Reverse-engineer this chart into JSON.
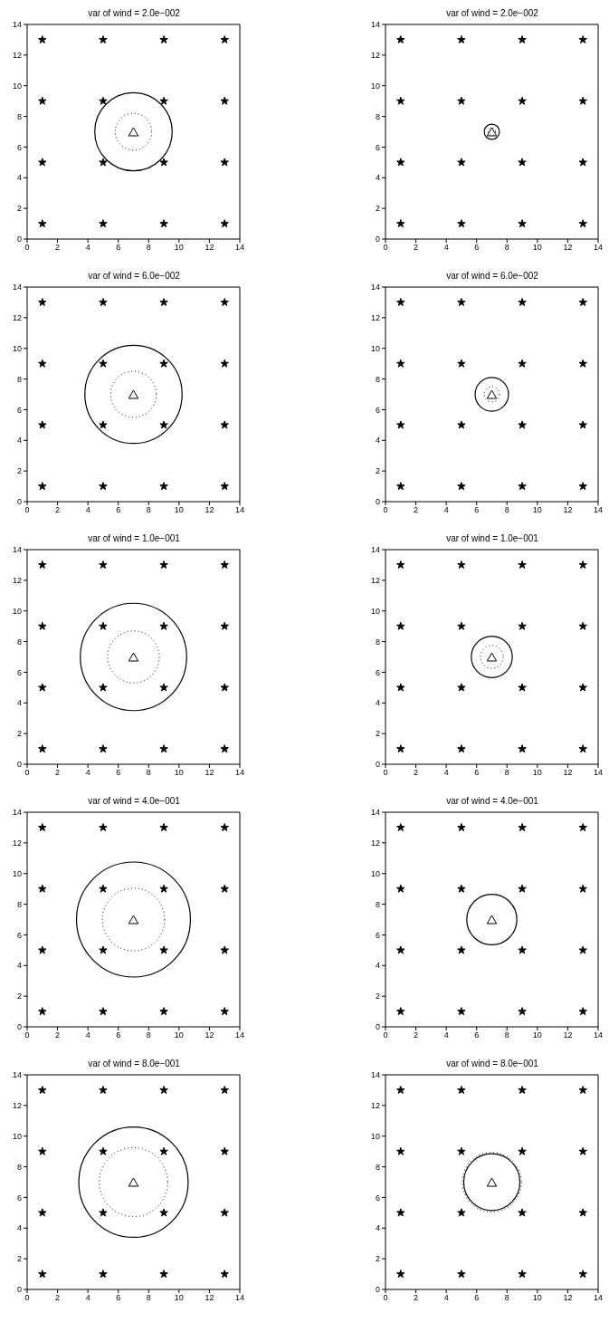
{
  "chart_data": [
    {
      "type": "scatter",
      "title": "var of wind = 2.0e−002",
      "xlim": [
        0,
        14
      ],
      "ylim": [
        0,
        14
      ],
      "xticks": [
        0,
        2,
        4,
        6,
        8,
        10,
        12,
        14
      ],
      "yticks": [
        0,
        2,
        4,
        6,
        8,
        10,
        12,
        14
      ],
      "series": [
        {
          "type": "scatter",
          "marker": "star",
          "color": "#000000",
          "x": [
            1,
            5,
            9,
            13,
            1,
            5,
            9,
            13,
            1,
            5,
            9,
            13,
            1,
            5,
            9,
            13
          ],
          "values": [
            1,
            1,
            1,
            1,
            5,
            5,
            5,
            5,
            9,
            9,
            9,
            9,
            13,
            13,
            13,
            13
          ]
        },
        {
          "type": "scatter",
          "marker": "triangle",
          "color": "#000000",
          "x": [
            7
          ],
          "values": [
            7
          ]
        }
      ]
    },
    {
      "type": "scatter",
      "title": "var of wind = 2.0e−002",
      "xlim": [
        0,
        14
      ],
      "ylim": [
        0,
        14
      ],
      "xticks": [
        0,
        2,
        4,
        6,
        8,
        10,
        12,
        14
      ],
      "yticks": [
        0,
        2,
        4,
        6,
        8,
        10,
        12,
        14
      ],
      "series": [
        {
          "type": "scatter",
          "marker": "star",
          "color": "#000000",
          "x": [
            1,
            5,
            9,
            13,
            1,
            5,
            9,
            13,
            1,
            5,
            9,
            13,
            1,
            5,
            9,
            13
          ],
          "values": [
            1,
            1,
            1,
            1,
            5,
            5,
            5,
            5,
            9,
            9,
            9,
            9,
            13,
            13,
            13,
            13
          ]
        },
        {
          "type": "scatter",
          "marker": "triangle",
          "color": "#000000",
          "x": [
            7
          ],
          "values": [
            7
          ]
        }
      ]
    },
    {
      "type": "scatter",
      "title": "var of wind = 6.0e−002",
      "xlim": [
        0,
        14
      ],
      "ylim": [
        0,
        14
      ],
      "xticks": [
        0,
        2,
        4,
        6,
        8,
        10,
        12,
        14
      ],
      "yticks": [
        0,
        2,
        4,
        6,
        8,
        10,
        12,
        14
      ],
      "series": [
        {
          "type": "scatter",
          "marker": "star",
          "color": "#000000",
          "x": [
            1,
            5,
            9,
            13,
            1,
            5,
            9,
            13,
            1,
            5,
            9,
            13,
            1,
            5,
            9,
            13
          ],
          "values": [
            1,
            1,
            1,
            1,
            5,
            5,
            5,
            5,
            9,
            9,
            9,
            9,
            13,
            13,
            13,
            13
          ]
        },
        {
          "type": "scatter",
          "marker": "triangle",
          "color": "#000000",
          "x": [
            7
          ],
          "values": [
            7
          ]
        }
      ]
    },
    {
      "type": "scatter",
      "title": "var of wind = 6.0e−002",
      "xlim": [
        0,
        14
      ],
      "ylim": [
        0,
        14
      ],
      "xticks": [
        0,
        2,
        4,
        6,
        8,
        10,
        12,
        14
      ],
      "yticks": [
        0,
        2,
        4,
        6,
        8,
        10,
        12,
        14
      ],
      "series": [
        {
          "type": "scatter",
          "marker": "star",
          "color": "#000000",
          "x": [
            1,
            5,
            9,
            13,
            1,
            5,
            9,
            13,
            1,
            5,
            9,
            13,
            1,
            5,
            9,
            13
          ],
          "values": [
            1,
            1,
            1,
            1,
            5,
            5,
            5,
            5,
            9,
            9,
            9,
            9,
            13,
            13,
            13,
            13
          ]
        },
        {
          "type": "scatter",
          "marker": "triangle",
          "color": "#000000",
          "x": [
            7
          ],
          "values": [
            7
          ]
        }
      ]
    },
    {
      "type": "scatter",
      "title": "var of wind = 1.0e−001",
      "xlim": [
        0,
        14
      ],
      "ylim": [
        0,
        14
      ],
      "xticks": [
        0,
        2,
        4,
        6,
        8,
        10,
        12,
        14
      ],
      "yticks": [
        0,
        2,
        4,
        6,
        8,
        10,
        12,
        14
      ],
      "series": [
        {
          "type": "scatter",
          "marker": "star",
          "color": "#000000",
          "x": [
            1,
            5,
            9,
            13,
            1,
            5,
            9,
            13,
            1,
            5,
            9,
            13,
            1,
            5,
            9,
            13
          ],
          "values": [
            1,
            1,
            1,
            1,
            5,
            5,
            5,
            5,
            9,
            9,
            9,
            9,
            13,
            13,
            13,
            13
          ]
        },
        {
          "type": "scatter",
          "marker": "triangle",
          "color": "#000000",
          "x": [
            7
          ],
          "values": [
            7
          ]
        }
      ]
    },
    {
      "type": "scatter",
      "title": "var of wind = 1.0e−001",
      "xlim": [
        0,
        14
      ],
      "ylim": [
        0,
        14
      ],
      "xticks": [
        0,
        2,
        4,
        6,
        8,
        10,
        12,
        14
      ],
      "yticks": [
        0,
        2,
        4,
        6,
        8,
        10,
        12,
        14
      ],
      "series": [
        {
          "type": "scatter",
          "marker": "star",
          "color": "#000000",
          "x": [
            1,
            5,
            9,
            13,
            1,
            5,
            9,
            13,
            1,
            5,
            9,
            13,
            1,
            5,
            9,
            13
          ],
          "values": [
            1,
            1,
            1,
            1,
            5,
            5,
            5,
            5,
            9,
            9,
            9,
            9,
            13,
            13,
            13,
            13
          ]
        },
        {
          "type": "scatter",
          "marker": "triangle",
          "color": "#000000",
          "x": [
            7
          ],
          "values": [
            7
          ]
        }
      ]
    },
    {
      "type": "scatter",
      "title": "var of wind = 4.0e−001",
      "xlim": [
        0,
        14
      ],
      "ylim": [
        0,
        14
      ],
      "xticks": [
        0,
        2,
        4,
        6,
        8,
        10,
        12,
        14
      ],
      "yticks": [
        0,
        2,
        4,
        6,
        8,
        10,
        12,
        14
      ],
      "series": [
        {
          "type": "scatter",
          "marker": "star",
          "color": "#000000",
          "x": [
            1,
            5,
            9,
            13,
            1,
            5,
            9,
            13,
            1,
            5,
            9,
            13,
            1,
            5,
            9,
            13
          ],
          "values": [
            1,
            1,
            1,
            1,
            5,
            5,
            5,
            5,
            9,
            9,
            9,
            9,
            13,
            13,
            13,
            13
          ]
        },
        {
          "type": "scatter",
          "marker": "triangle",
          "color": "#000000",
          "x": [
            7
          ],
          "values": [
            7
          ]
        }
      ]
    },
    {
      "type": "scatter",
      "title": "var of wind = 4.0e−001",
      "xlim": [
        0,
        14
      ],
      "ylim": [
        0,
        14
      ],
      "xticks": [
        0,
        2,
        4,
        6,
        8,
        10,
        12,
        14
      ],
      "yticks": [
        0,
        2,
        4,
        6,
        8,
        10,
        12,
        14
      ],
      "series": [
        {
          "type": "scatter",
          "marker": "star",
          "color": "#000000",
          "x": [
            1,
            5,
            9,
            13,
            1,
            5,
            9,
            13,
            1,
            5,
            9,
            13,
            1,
            5,
            9,
            13
          ],
          "values": [
            1,
            1,
            1,
            1,
            5,
            5,
            5,
            5,
            9,
            9,
            9,
            9,
            13,
            13,
            13,
            13
          ]
        },
        {
          "type": "scatter",
          "marker": "triangle",
          "color": "#000000",
          "x": [
            7
          ],
          "values": [
            7
          ]
        }
      ]
    },
    {
      "type": "scatter",
      "title": "var of wind = 8.0e−001",
      "xlim": [
        0,
        14
      ],
      "ylim": [
        0,
        14
      ],
      "xticks": [
        0,
        2,
        4,
        6,
        8,
        10,
        12,
        14
      ],
      "yticks": [
        0,
        2,
        4,
        6,
        8,
        10,
        12,
        14
      ],
      "series": [
        {
          "type": "scatter",
          "marker": "star",
          "color": "#000000",
          "x": [
            1,
            5,
            9,
            13,
            1,
            5,
            9,
            13,
            1,
            5,
            9,
            13,
            1,
            5,
            9,
            13
          ],
          "values": [
            1,
            1,
            1,
            1,
            5,
            5,
            5,
            5,
            9,
            9,
            9,
            9,
            13,
            13,
            13,
            13
          ]
        },
        {
          "type": "scatter",
          "marker": "triangle",
          "color": "#000000",
          "x": [
            7
          ],
          "values": [
            7
          ]
        }
      ]
    },
    {
      "type": "scatter",
      "title": "var of wind = 8.0e−001",
      "xlim": [
        0,
        14
      ],
      "ylim": [
        0,
        14
      ],
      "xticks": [
        0,
        2,
        4,
        6,
        8,
        10,
        12,
        14
      ],
      "yticks": [
        0,
        2,
        4,
        6,
        8,
        10,
        12,
        14
      ],
      "series": [
        {
          "type": "scatter",
          "marker": "star",
          "color": "#000000",
          "x": [
            1,
            5,
            9,
            13,
            1,
            5,
            9,
            13,
            1,
            5,
            9,
            13,
            1,
            5,
            9,
            13
          ],
          "values": [
            1,
            1,
            1,
            1,
            5,
            5,
            5,
            5,
            9,
            9,
            9,
            9,
            13,
            13,
            13,
            13
          ]
        },
        {
          "type": "scatter",
          "marker": "triangle",
          "color": "#000000",
          "x": [
            7
          ],
          "values": [
            7
          ]
        }
      ]
    }
  ]
}
